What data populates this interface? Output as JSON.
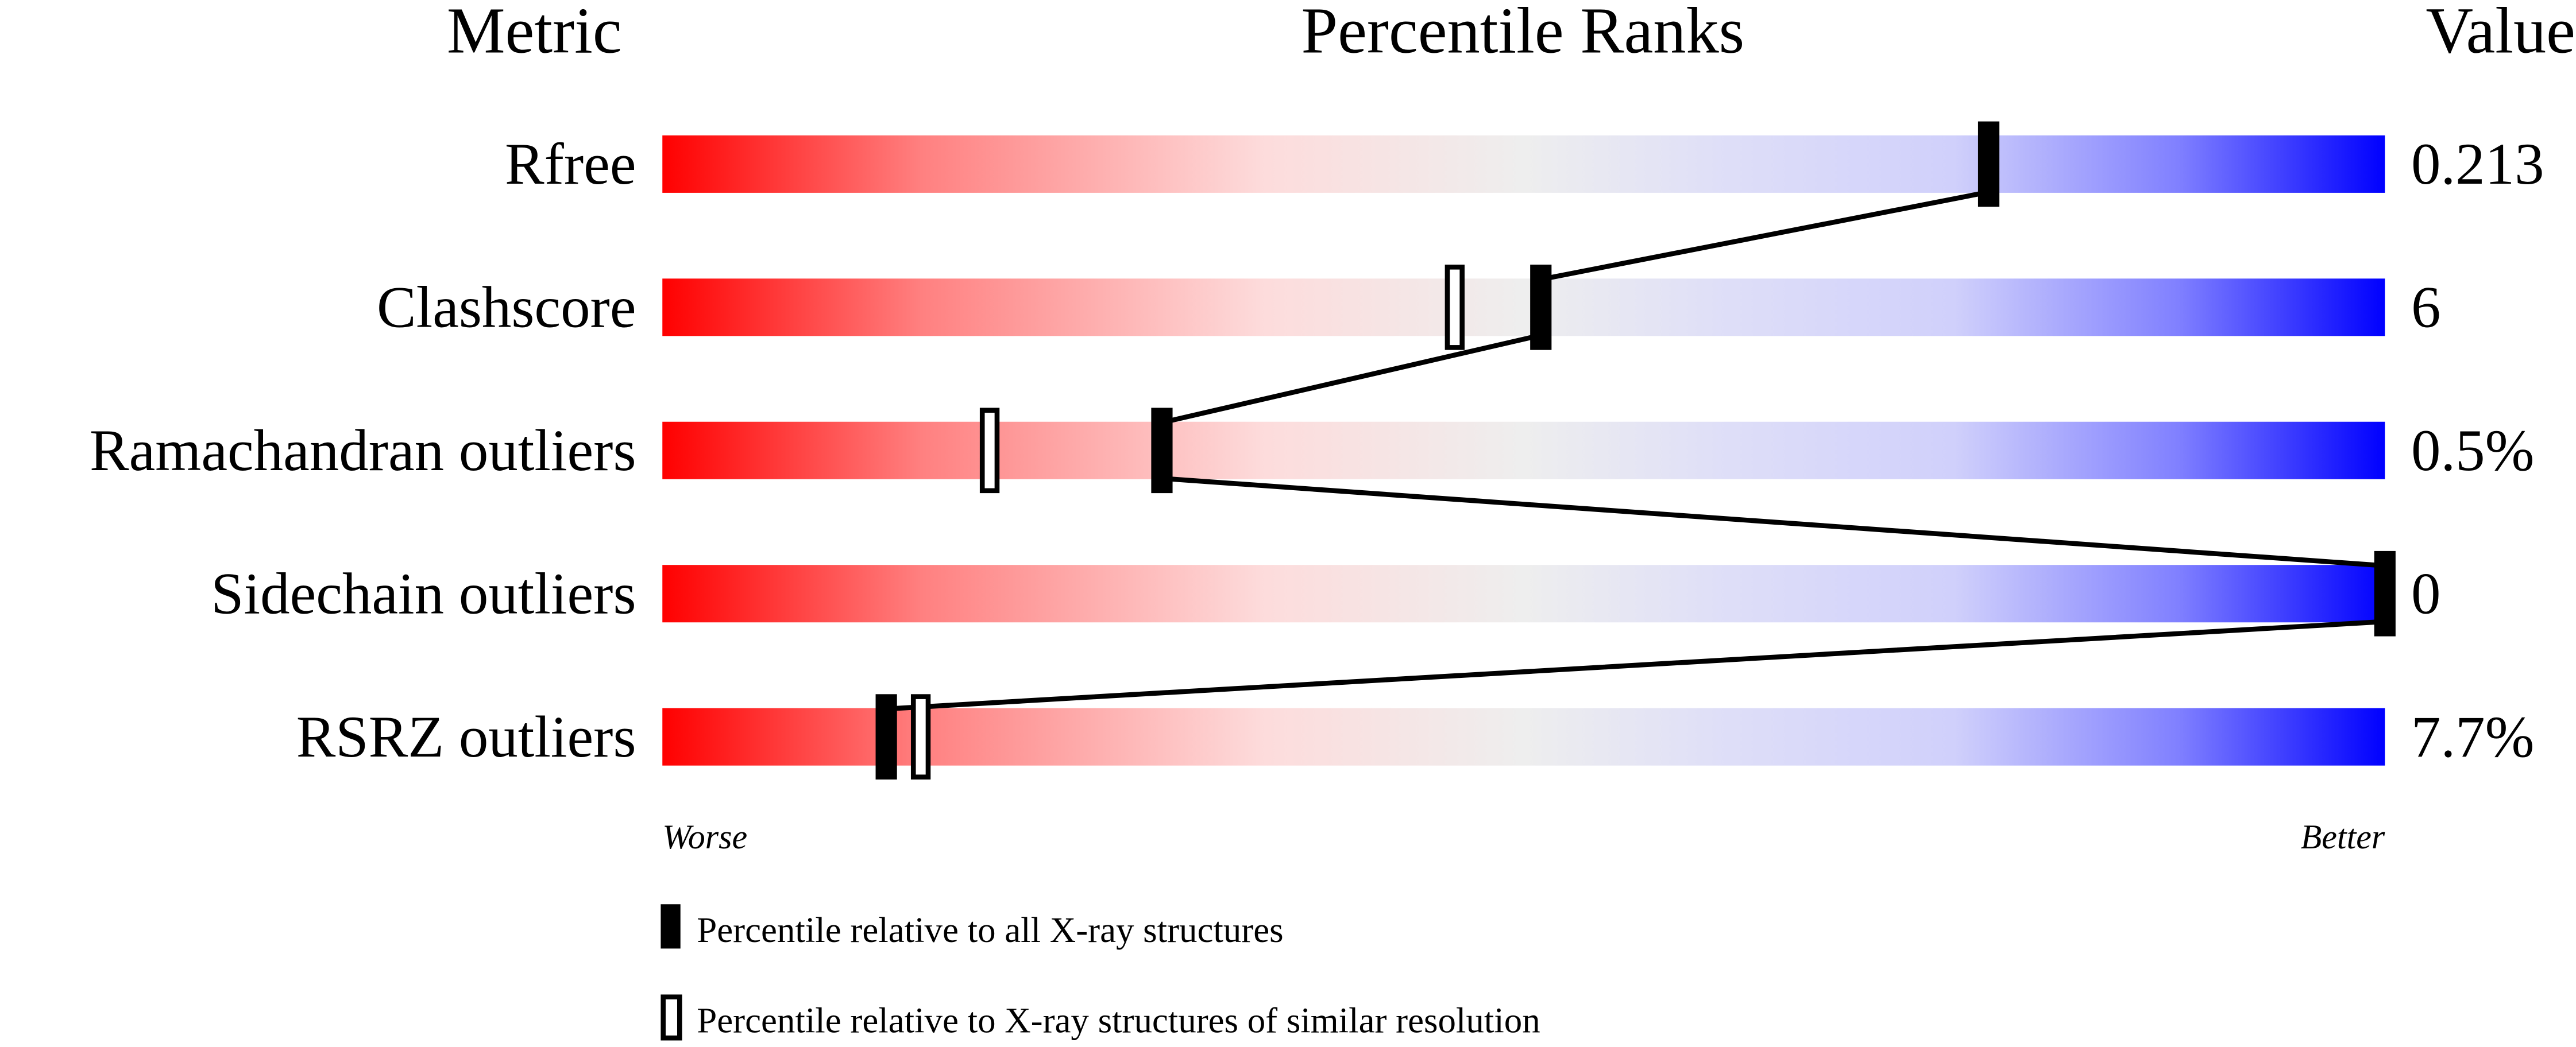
{
  "chart_data": {
    "type": "percentile-slider",
    "headers": {
      "metric": "Metric",
      "ranks": "Percentile Ranks",
      "value": "Value"
    },
    "xlim": [
      0,
      100
    ],
    "axis_labels": {
      "left": "Worse",
      "right": "Better"
    },
    "gradient_colors": [
      "#ff0000",
      "#ff8080",
      "#fddcdc",
      "#eeeeee",
      "#dedef8",
      "#d0d0fb",
      "#8080ff",
      "#0000ff"
    ],
    "metrics": [
      {
        "name": "Rfree",
        "value": "0.213",
        "percentile_all": 77,
        "percentile_similar": null
      },
      {
        "name": "Clashscore",
        "value": "6",
        "percentile_all": 51,
        "percentile_similar": 46
      },
      {
        "name": "Ramachandran outliers",
        "value": "0.5%",
        "percentile_all": 29,
        "percentile_similar": 19
      },
      {
        "name": "Sidechain outliers",
        "value": "0",
        "percentile_all": 100,
        "percentile_similar": null
      },
      {
        "name": "RSRZ outliers",
        "value": "7.7%",
        "percentile_all": 13,
        "percentile_similar": 15
      }
    ],
    "legend": [
      {
        "marker": "filled",
        "label": "Percentile relative to all X-ray structures"
      },
      {
        "marker": "open",
        "label": "Percentile relative to X-ray structures of similar resolution"
      }
    ]
  }
}
